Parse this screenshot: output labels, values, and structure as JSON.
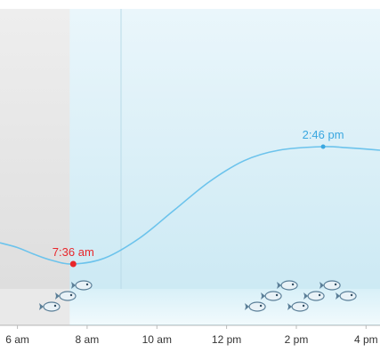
{
  "chart_data": {
    "type": "line",
    "title": "",
    "xlabel": "",
    "ylabel": "",
    "x_ticks": [
      "6 am",
      "8 am",
      "10 am",
      "12 pm",
      "2 pm",
      "4 pm"
    ],
    "x_tick_hours": [
      6,
      8,
      10,
      12,
      14,
      16
    ],
    "x_range_hours": [
      5.5,
      16.4
    ],
    "series": [
      {
        "values_hours": [
          5.5,
          6.0,
          6.5,
          7.0,
          7.6,
          8.5,
          9.5,
          10.5,
          11.5,
          12.5,
          13.5,
          14.77,
          15.5,
          16.4
        ],
        "values": [
          0.18,
          0.14,
          0.08,
          0.03,
          0.0,
          0.05,
          0.22,
          0.46,
          0.7,
          0.88,
          0.97,
          1.0,
          0.99,
          0.97
        ]
      }
    ],
    "events": [
      {
        "label": "7:36 am",
        "hour": 7.6,
        "value": 0.0,
        "kind": "low",
        "color": "#e8262b"
      },
      {
        "label": "2:46 pm",
        "hour": 14.77,
        "value": 1.0,
        "kind": "high",
        "color": "#3aa7e0"
      }
    ],
    "shaded_region_hours": [
      5.5,
      7.5
    ],
    "fish_groups": [
      {
        "hour": 7.9,
        "count": 3
      },
      {
        "hour": 13.8,
        "count": 7
      }
    ]
  },
  "colors": {
    "line": "#6cc3ec",
    "day_bg": "#d7eef6",
    "night_bg": "#e6e6e6",
    "low": "#e8262b",
    "high": "#3aa7e0"
  }
}
